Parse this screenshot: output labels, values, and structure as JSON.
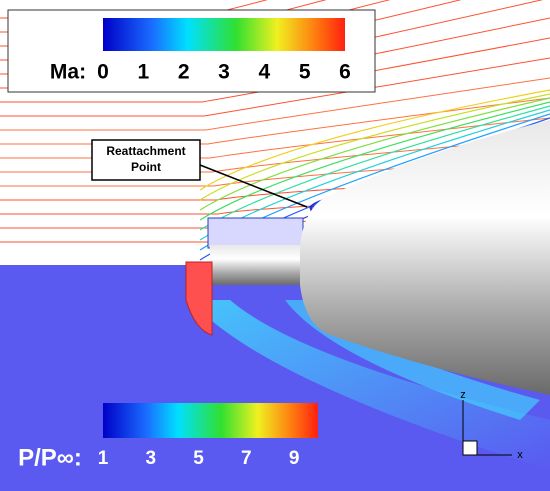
{
  "legend_top": {
    "label": "Ma:",
    "range": [
      0,
      6
    ],
    "ticks": [
      0,
      1,
      2,
      3,
      4,
      5,
      6
    ]
  },
  "legend_bottom": {
    "label": "P/P∞:",
    "range": [
      1,
      10
    ],
    "ticks": [
      1,
      3,
      5,
      7,
      9
    ]
  },
  "annotation": [
    "Reattachment",
    "Point"
  ],
  "axes": {
    "z": "z",
    "x": "x"
  }
}
